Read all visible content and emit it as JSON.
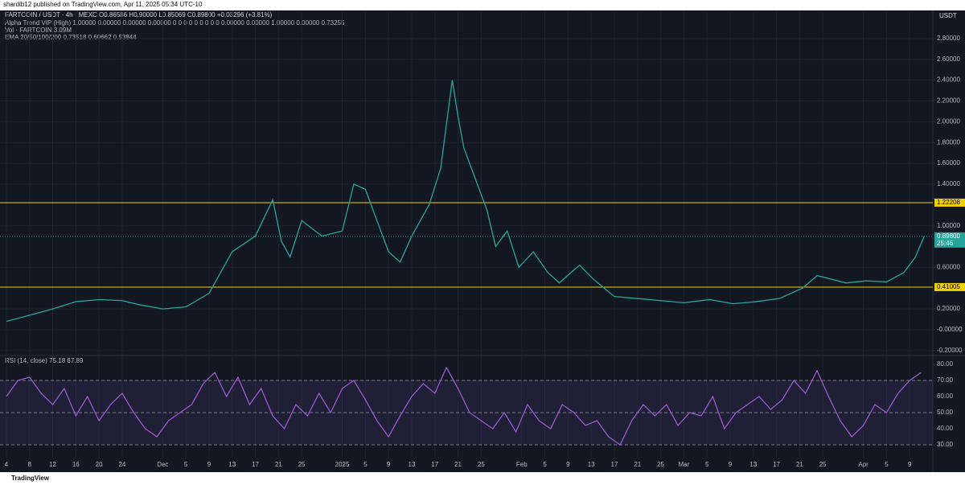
{
  "header": "shardib12 published on TradingView.com, Apr 11, 2025 05:34 UTC-10",
  "footer": "TradingView",
  "chart_data": [
    {
      "type": "line",
      "title": "FARTCOIN / USDT · 4h · MEXC  O0.86586 H0.90000 L0.85069 C0.89800 +0.03296 (+3.81%)",
      "info_lines": [
        "Alpha Trend VIP (High) 1.00000 0.00000 0.00000 0.00000 0 0 0 0 0 0 0 0 0 0.00000 0.00000 1.00000 0.00000 0.73255",
        "Vol · FARTCOIN 3.09M",
        "EMA 20/50/100/200 0.73518 0.60662 0.53844"
      ],
      "currency": "USDT",
      "x": [
        0,
        4,
        8,
        12,
        16,
        20,
        23,
        27,
        31,
        35,
        39,
        43,
        46,
        47.5,
        49,
        51,
        54.5,
        58,
        60,
        62,
        64,
        66,
        68,
        70,
        73,
        75,
        77,
        78,
        79,
        81,
        83,
        84.5,
        86.5,
        88.5,
        91,
        93.5,
        95.5,
        97.5,
        99,
        101.5,
        105,
        109,
        113,
        117,
        121.5,
        125.5,
        129.5,
        133.5,
        137.5,
        140,
        141.5,
        145,
        148.5,
        152,
        155,
        157,
        158.5
      ],
      "series": [
        {
          "name": "FARTCOIN / USDT",
          "color": "#26a69a",
          "values": [
            0.08,
            0.14,
            0.2,
            0.27,
            0.29,
            0.28,
            0.24,
            0.2,
            0.22,
            0.35,
            0.75,
            0.9,
            1.25,
            0.85,
            0.7,
            1.05,
            0.9,
            0.95,
            1.4,
            1.35,
            1.05,
            0.75,
            0.65,
            0.9,
            1.2,
            1.55,
            2.4,
            2.05,
            1.75,
            1.45,
            1.15,
            0.8,
            0.95,
            0.6,
            0.75,
            0.55,
            0.45,
            0.55,
            0.62,
            0.48,
            0.32,
            0.3,
            0.28,
            0.26,
            0.29,
            0.25,
            0.27,
            0.3,
            0.4,
            0.52,
            0.5,
            0.45,
            0.47,
            0.46,
            0.55,
            0.7,
            0.898
          ]
        }
      ],
      "xlim": [
        -1.1,
        160
      ],
      "ylim": [
        -0.24,
        3.07
      ],
      "yticks": [
        {
          "value": 2.8,
          "label": "2.80000"
        },
        {
          "value": 2.6,
          "label": "2.60000"
        },
        {
          "value": 2.4,
          "label": "2.40000"
        },
        {
          "value": 2.2,
          "label": "2.20000"
        },
        {
          "value": 2.0,
          "label": "2.00000"
        },
        {
          "value": 1.8,
          "label": "1.80000"
        },
        {
          "value": 1.6,
          "label": "1.60000"
        },
        {
          "value": 1.4,
          "label": "1.40000"
        },
        {
          "value": 1.0,
          "label": "1.00000"
        },
        {
          "value": 0.6,
          "label": "0.60000"
        },
        {
          "value": 0.2,
          "label": "0.20000"
        },
        {
          "value": 0,
          "label": "-0.00000"
        },
        {
          "value": -0.2,
          "label": "-0.20000"
        }
      ],
      "xticks": [
        {
          "value": 0,
          "label": "4"
        },
        {
          "value": 4,
          "label": "8"
        },
        {
          "value": 8,
          "label": "12"
        },
        {
          "value": 12,
          "label": "16"
        },
        {
          "value": 16,
          "label": "20"
        },
        {
          "value": 20,
          "label": "24"
        },
        {
          "value": 27,
          "label": "Dec"
        },
        {
          "value": 31,
          "label": "5"
        },
        {
          "value": 35,
          "label": "9"
        },
        {
          "value": 39,
          "label": "13"
        },
        {
          "value": 43,
          "label": "17"
        },
        {
          "value": 47,
          "label": "21"
        },
        {
          "value": 51,
          "label": "25"
        },
        {
          "value": 58,
          "label": "2025"
        },
        {
          "value": 62,
          "label": "5"
        },
        {
          "value": 66,
          "label": "9"
        },
        {
          "value": 70,
          "label": "13"
        },
        {
          "value": 74,
          "label": "17"
        },
        {
          "value": 78,
          "label": "21"
        },
        {
          "value": 82,
          "label": "25"
        },
        {
          "value": 89,
          "label": "Feb"
        },
        {
          "value": 93,
          "label": "5"
        },
        {
          "value": 97,
          "label": "9"
        },
        {
          "value": 101,
          "label": "13"
        },
        {
          "value": 105,
          "label": "17"
        },
        {
          "value": 109,
          "label": "21"
        },
        {
          "value": 113,
          "label": "25"
        },
        {
          "value": 117,
          "label": "Mar"
        },
        {
          "value": 121,
          "label": "5"
        },
        {
          "value": 125,
          "label": "9"
        },
        {
          "value": 129,
          "label": "13"
        },
        {
          "value": 133,
          "label": "17"
        },
        {
          "value": 137,
          "label": "21"
        },
        {
          "value": 141,
          "label": "25"
        },
        {
          "value": 148,
          "label": "Apr"
        },
        {
          "value": 152,
          "label": "5"
        },
        {
          "value": 156,
          "label": "9"
        }
      ],
      "levels": [
        1.22208,
        0.41005
      ],
      "level_color": "#f0d000",
      "current": {
        "value": 0.898,
        "label": "0.89800"
      },
      "countdown": "25:46",
      "grid": true
    },
    {
      "type": "line",
      "title": "RSI (14, close) 75.18 67.89",
      "x": [
        0,
        2,
        4,
        6,
        8,
        10,
        12,
        14,
        16,
        18,
        20,
        22,
        24,
        26,
        28,
        30,
        32,
        34,
        36,
        38,
        40,
        42,
        44,
        46,
        48,
        50,
        52,
        54,
        56,
        58,
        60,
        62,
        64,
        66,
        68,
        70,
        72,
        74,
        76,
        78,
        80,
        82,
        84,
        86,
        88,
        90,
        92,
        94,
        96,
        98,
        100,
        102,
        104,
        106,
        108,
        110,
        112,
        114,
        116,
        118,
        120,
        122,
        124,
        126,
        128,
        130,
        132,
        134,
        136,
        138,
        140,
        142,
        144,
        146,
        148,
        150,
        152,
        154,
        156,
        158
      ],
      "series": [
        {
          "name": "RSI",
          "color": "#9b59d0",
          "values": [
            60,
            70,
            72,
            62,
            55,
            65,
            48,
            60,
            45,
            55,
            62,
            50,
            40,
            35,
            45,
            50,
            55,
            68,
            75,
            60,
            72,
            55,
            65,
            48,
            40,
            55,
            48,
            62,
            50,
            65,
            70,
            58,
            45,
            35,
            48,
            60,
            68,
            62,
            78,
            65,
            50,
            45,
            40,
            50,
            38,
            55,
            45,
            40,
            55,
            50,
            42,
            45,
            35,
            30,
            45,
            55,
            48,
            55,
            42,
            50,
            48,
            60,
            40,
            50,
            55,
            60,
            52,
            58,
            70,
            62,
            76,
            60,
            45,
            35,
            42,
            55,
            50,
            62,
            70,
            75
          ]
        }
      ],
      "xlim": [
        -1.1,
        160
      ],
      "ylim": [
        21.5,
        85.5
      ],
      "yticks": [
        {
          "value": 80,
          "label": "80.00"
        },
        {
          "value": 70,
          "label": "70.00"
        },
        {
          "value": 60,
          "label": "60.00"
        },
        {
          "value": 50,
          "label": "50.00"
        },
        {
          "value": 40,
          "label": "40.00"
        },
        {
          "value": 30,
          "label": "30.00"
        }
      ],
      "band": [
        30,
        70
      ],
      "guides": [
        70,
        50,
        30
      ]
    }
  ]
}
